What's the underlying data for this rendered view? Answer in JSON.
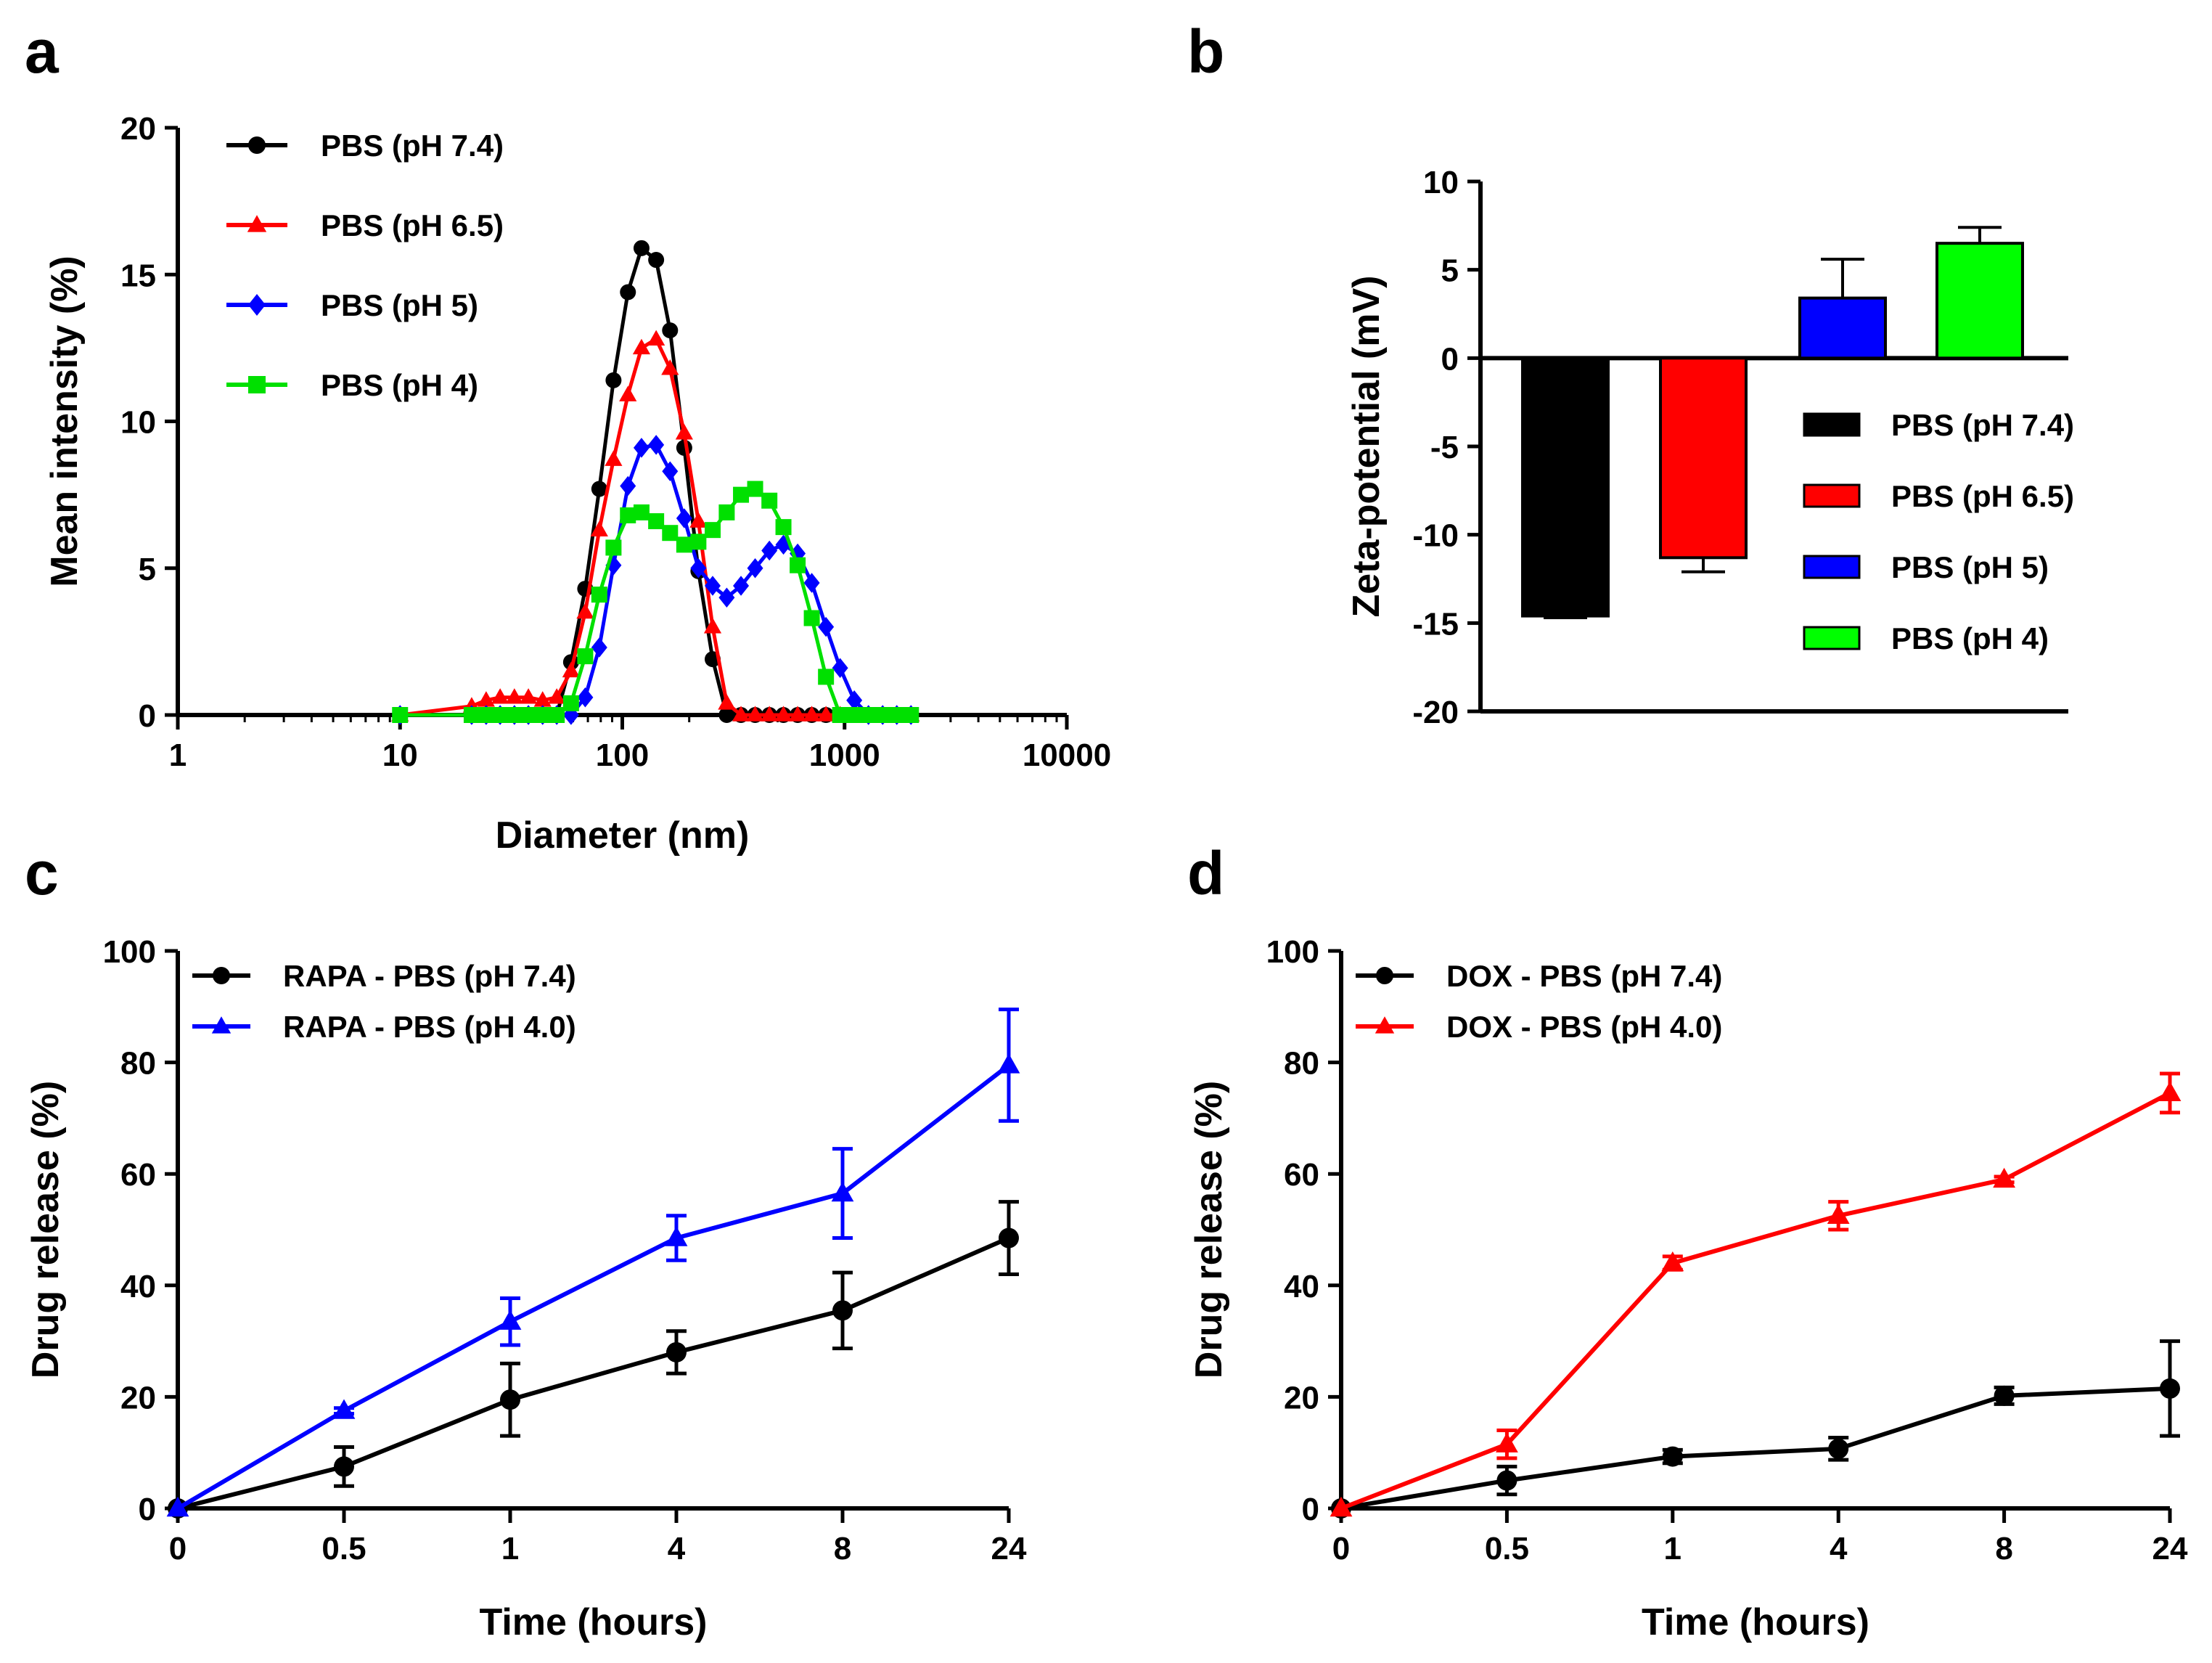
{
  "chart_data": [
    {
      "panel": "a",
      "type": "line",
      "xscale": "log",
      "xlabel": "Diameter (nm)",
      "ylabel": "Mean intensity (%)",
      "xlim": [
        1,
        10000
      ],
      "ylim": [
        0,
        20
      ],
      "xticks": [
        1,
        10,
        100,
        1000,
        10000
      ],
      "xtick_labels": [
        "1",
        "10",
        "100",
        "1000",
        "10000"
      ],
      "yticks": [
        0,
        5,
        10,
        15,
        20
      ],
      "ytick_labels": [
        "0",
        "5",
        "10",
        "15",
        "20"
      ],
      "legend_position": "top-left",
      "series": [
        {
          "name": "PBS (pH 7.4)",
          "color": "#000000",
          "marker": "circle",
          "x": [
            10,
            21,
            24.4,
            28.2,
            32.7,
            37.8,
            43.8,
            50.7,
            58.8,
            68.1,
            78.8,
            91.3,
            106,
            122,
            142,
            164,
            190,
            220,
            255,
            295,
            342,
            396,
            459,
            531,
            615,
            712,
            825,
            955,
            1106,
            1281,
            1484,
            1718,
            1990
          ],
          "y": [
            0,
            0,
            0,
            0,
            0,
            0,
            0,
            0,
            1.8,
            4.3,
            7.7,
            11.4,
            14.4,
            15.9,
            15.5,
            13.1,
            9.1,
            4.9,
            1.9,
            0,
            0,
            0,
            0,
            0,
            0,
            0,
            0,
            0,
            0,
            0,
            0,
            0,
            0
          ]
        },
        {
          "name": "PBS (pH 6.5)",
          "color": "#ff0000",
          "marker": "triangle",
          "x": [
            10,
            21,
            24.4,
            28.2,
            32.7,
            37.8,
            43.8,
            50.7,
            58.8,
            68.1,
            78.8,
            91.3,
            106,
            122,
            142,
            164,
            190,
            220,
            255,
            295,
            342,
            396,
            459,
            531,
            615,
            712,
            825,
            955,
            1106,
            1281,
            1484,
            1718,
            1990
          ],
          "y": [
            0,
            0.3,
            0.5,
            0.6,
            0.6,
            0.6,
            0.5,
            0.6,
            1.5,
            3.5,
            6.3,
            8.7,
            10.9,
            12.5,
            12.8,
            11.8,
            9.6,
            6.6,
            3.0,
            0.4,
            0,
            0,
            0,
            0,
            0,
            0,
            0,
            0,
            0,
            0,
            0,
            0,
            0
          ]
        },
        {
          "name": "PBS (pH 5)",
          "color": "#0000ff",
          "marker": "diamond",
          "x": [
            10,
            21,
            24.4,
            28.2,
            32.7,
            37.8,
            43.8,
            50.7,
            58.8,
            68.1,
            78.8,
            91.3,
            106,
            122,
            142,
            164,
            190,
            220,
            255,
            295,
            342,
            396,
            459,
            531,
            615,
            712,
            825,
            955,
            1106,
            1281,
            1484,
            1718,
            1990
          ],
          "y": [
            0,
            0,
            0,
            0,
            0,
            0,
            0,
            0,
            0,
            0.6,
            2.3,
            5.1,
            7.8,
            9.1,
            9.2,
            8.3,
            6.7,
            5.0,
            4.4,
            4.0,
            4.4,
            5.0,
            5.6,
            5.8,
            5.5,
            4.5,
            3.0,
            1.6,
            0.5,
            0,
            0,
            0,
            0
          ]
        },
        {
          "name": "PBS (pH 4)",
          "color": "#00e000",
          "marker": "square",
          "x": [
            10,
            21,
            24.4,
            28.2,
            32.7,
            37.8,
            43.8,
            50.7,
            58.8,
            68.1,
            78.8,
            91.3,
            106,
            122,
            142,
            164,
            190,
            220,
            255,
            295,
            342,
            396,
            459,
            531,
            615,
            712,
            825,
            955,
            1106,
            1281,
            1484,
            1718,
            1990
          ],
          "y": [
            0,
            0,
            0,
            0,
            0,
            0,
            0,
            0,
            0.4,
            2.0,
            4.1,
            5.7,
            6.8,
            6.9,
            6.6,
            6.2,
            5.8,
            5.9,
            6.3,
            6.9,
            7.5,
            7.7,
            7.3,
            6.4,
            5.1,
            3.3,
            1.3,
            0,
            0,
            0,
            0,
            0,
            0
          ]
        }
      ]
    },
    {
      "panel": "b",
      "type": "bar",
      "xlabel": "",
      "ylabel": "Zeta-potential (mV)",
      "ylim": [
        -20,
        10
      ],
      "yticks": [
        -20,
        -15,
        -10,
        -5,
        0,
        5,
        10
      ],
      "ytick_labels": [
        "-20",
        "-15",
        "-10",
        "-5",
        "0",
        "5",
        "10"
      ],
      "legend_position": "right",
      "categories": [
        "PBS (pH 7.4)",
        "PBS (pH 6.5)",
        "PBS (pH 5)",
        "PBS (pH 4)"
      ],
      "values": [
        -14.6,
        -11.3,
        3.4,
        6.5
      ],
      "errors": [
        0.1,
        0.8,
        2.2,
        0.9
      ],
      "colors": [
        "#000000",
        "#ff0000",
        "#0000ff",
        "#00ff00"
      ]
    },
    {
      "panel": "c",
      "type": "line",
      "xlabel": "Time (hours)",
      "ylabel": "Drug release (%)",
      "ylim": [
        0,
        100
      ],
      "yticks": [
        0,
        20,
        40,
        60,
        80,
        100
      ],
      "ytick_labels": [
        "0",
        "20",
        "40",
        "60",
        "80",
        "100"
      ],
      "categories": [
        "0",
        "0.5",
        "1",
        "4",
        "8",
        "24"
      ],
      "legend_position": "top-left",
      "series": [
        {
          "name": "RAPA - PBS (pH 7.4)",
          "color": "#000000",
          "marker": "circle",
          "values": [
            0,
            7.5,
            19.5,
            28,
            35.5,
            48.5
          ],
          "errors": [
            0,
            3.5,
            6.5,
            3.8,
            6.8,
            6.5
          ]
        },
        {
          "name": "RAPA - PBS (pH 4.0)",
          "color": "#0000ff",
          "marker": "triangle",
          "values": [
            0,
            17.5,
            33.5,
            48.5,
            56.5,
            79.5
          ],
          "errors": [
            0,
            0.5,
            4.2,
            4,
            8,
            10
          ]
        }
      ]
    },
    {
      "panel": "d",
      "type": "line",
      "xlabel": "Time (hours)",
      "ylabel": "Drug release (%)",
      "ylim": [
        0,
        100
      ],
      "yticks": [
        0,
        20,
        40,
        60,
        80,
        100
      ],
      "ytick_labels": [
        "0",
        "20",
        "40",
        "60",
        "80",
        "100"
      ],
      "categories": [
        "0",
        "0.5",
        "1",
        "4",
        "8",
        "24"
      ],
      "legend_position": "top-left",
      "series": [
        {
          "name": "DOX - PBS (pH 7.4)",
          "color": "#000000",
          "marker": "circle",
          "values": [
            0,
            5,
            9.3,
            10.7,
            20.2,
            21.5
          ],
          "errors": [
            0,
            2.5,
            1.2,
            2,
            1.5,
            8.5
          ]
        },
        {
          "name": "DOX - PBS (pH 4.0)",
          "color": "#ff0000",
          "marker": "triangle",
          "values": [
            0,
            11.5,
            44,
            52.5,
            59,
            74.5
          ],
          "errors": [
            0,
            2.5,
            1.2,
            2.5,
            0.5,
            3.5
          ]
        }
      ]
    }
  ]
}
